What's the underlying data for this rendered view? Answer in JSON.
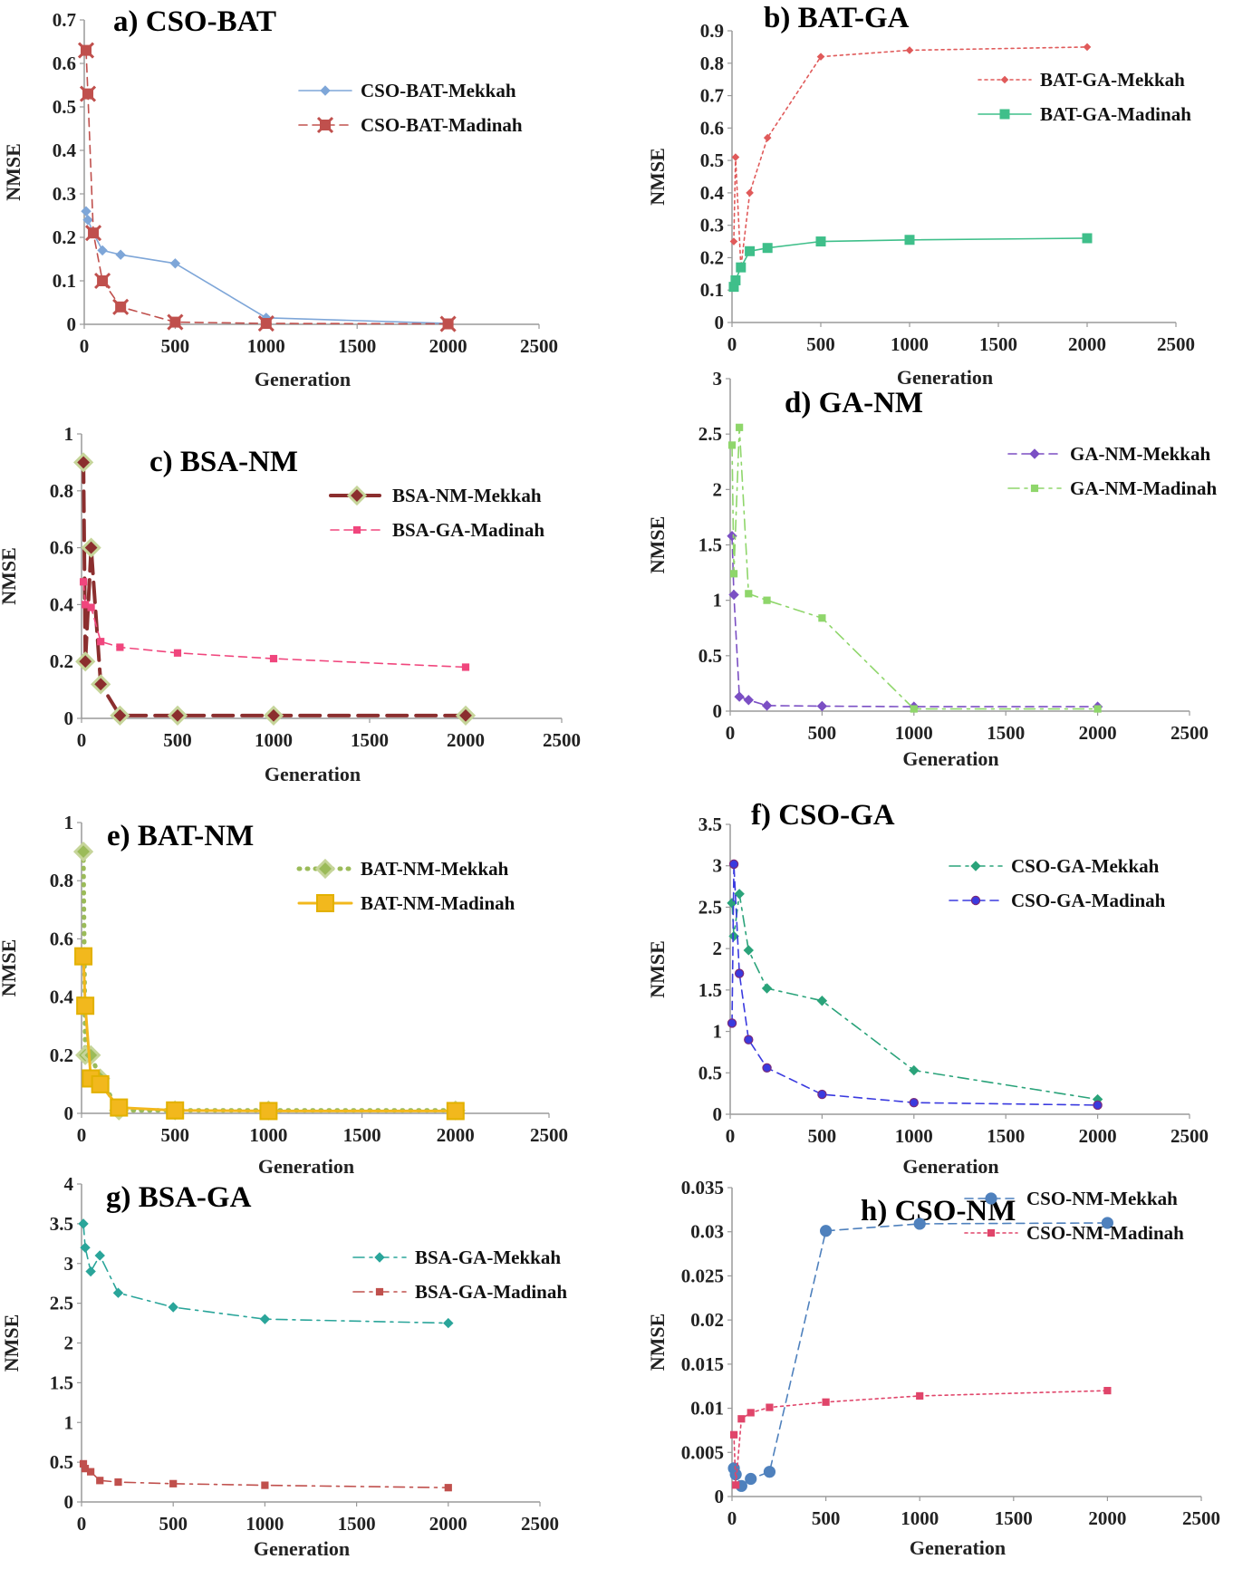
{
  "chart_data": [
    {
      "type": "line",
      "title": "a) CSO-BAT",
      "xlabel": "Generation",
      "ylabel": "NMSE",
      "xlim": [
        0,
        2500
      ],
      "ylim": [
        0,
        0.7
      ],
      "xticks": [
        0,
        500,
        1000,
        1500,
        2000,
        2500
      ],
      "xtick_labels": [
        "0",
        "500",
        "1000",
        "1500",
        "2000",
        "2500"
      ],
      "yticks": [
        0,
        0.1,
        0.2,
        0.3,
        0.4,
        0.5,
        0.6,
        0.7
      ],
      "ytick_labels": [
        "0",
        "0.1",
        "0.2",
        "0.3",
        "0.4",
        "0.5",
        "0.6",
        "0.7"
      ],
      "legend": "top-right",
      "series": [
        {
          "name": "CSO-BAT-Mekkah",
          "color": "#7ea6d8",
          "marker": "diamond",
          "dash": "solid",
          "x": [
            10,
            20,
            50,
            100,
            200,
            500,
            1000,
            2000
          ],
          "y": [
            0.26,
            0.24,
            0.21,
            0.17,
            0.16,
            0.14,
            0.015,
            0.002
          ]
        },
        {
          "name": "CSO-BAT-Madinah",
          "color": "#c0504d",
          "marker": "x-square",
          "dash": "dashed",
          "x": [
            10,
            20,
            50,
            100,
            200,
            500,
            1000,
            2000
          ],
          "y": [
            0.63,
            0.53,
            0.21,
            0.1,
            0.04,
            0.005,
            0.002,
            0.001
          ]
        }
      ]
    },
    {
      "type": "line",
      "title": "b) BAT-GA",
      "xlabel": "Generation",
      "ylabel": "NMSE",
      "xlim": [
        0,
        2500
      ],
      "ylim": [
        0,
        0.9
      ],
      "xticks": [
        0,
        500,
        1000,
        1500,
        2000,
        2500
      ],
      "xtick_labels": [
        "0",
        "500",
        "1000",
        "1500",
        "2000",
        "2500"
      ],
      "yticks": [
        0,
        0.1,
        0.2,
        0.3,
        0.4,
        0.5,
        0.6,
        0.7,
        0.8,
        0.9
      ],
      "ytick_labels": [
        "0",
        "0.1",
        "0.2",
        "0.3",
        "0.4",
        "0.5",
        "0.6",
        "0.7",
        "0.8",
        "0.9"
      ],
      "legend": "top-right",
      "series": [
        {
          "name": "BAT-GA-Mekkah",
          "color": "#e05a5a",
          "marker": "diamond-small",
          "dash": "dotted",
          "x": [
            10,
            20,
            50,
            100,
            200,
            500,
            1000,
            2000
          ],
          "y": [
            0.25,
            0.51,
            0.17,
            0.4,
            0.57,
            0.82,
            0.84,
            0.85
          ]
        },
        {
          "name": "BAT-GA-Madinah",
          "color": "#3fbf8a",
          "marker": "square",
          "dash": "solid",
          "x": [
            10,
            20,
            50,
            100,
            200,
            500,
            1000,
            2000
          ],
          "y": [
            0.11,
            0.13,
            0.17,
            0.22,
            0.23,
            0.25,
            0.255,
            0.26
          ]
        }
      ]
    },
    {
      "type": "line",
      "title": "c) BSA-NM",
      "xlabel": "Generation",
      "ylabel": "NMSE",
      "xlim": [
        0,
        2500
      ],
      "ylim": [
        0,
        1
      ],
      "xticks": [
        0,
        500,
        1000,
        1500,
        2000,
        2500
      ],
      "xtick_labels": [
        "0",
        "500",
        "1000",
        "1500",
        "2000",
        "2500"
      ],
      "yticks": [
        0,
        0.2,
        0.4,
        0.6,
        0.8,
        1
      ],
      "ytick_labels": [
        "0",
        "0.2",
        "0.4",
        "0.6",
        "0.8",
        "1"
      ],
      "legend": "top-right",
      "series": [
        {
          "name": "BSA-NM-Mekkah",
          "color": "#8b2e2e",
          "marker": "diamond-large",
          "dash": "longdash",
          "width": 4,
          "x": [
            10,
            20,
            50,
            100,
            200,
            500,
            1000,
            2000
          ],
          "y": [
            0.9,
            0.2,
            0.6,
            0.12,
            0.01,
            0.01,
            0.01,
            0.01
          ]
        },
        {
          "name": "BSA-GA-Madinah",
          "color": "#f0467d",
          "marker": "square-small",
          "dash": "dashed",
          "x": [
            10,
            20,
            50,
            100,
            200,
            500,
            1000,
            2000
          ],
          "y": [
            0.48,
            0.4,
            0.39,
            0.27,
            0.25,
            0.23,
            0.21,
            0.18
          ]
        }
      ]
    },
    {
      "type": "line",
      "title": "d) GA-NM",
      "xlabel": "Generation",
      "ylabel": "NMSE",
      "xlim": [
        0,
        2500
      ],
      "ylim": [
        0,
        3
      ],
      "xticks": [
        0,
        500,
        1000,
        1500,
        2000,
        2500
      ],
      "xtick_labels": [
        "0",
        "500",
        "1000",
        "1500",
        "2000",
        "2500"
      ],
      "yticks": [
        0,
        0.5,
        1,
        1.5,
        2,
        2.5,
        3
      ],
      "ytick_labels": [
        "0",
        "0.5",
        "1",
        "1.5",
        "2",
        "2.5",
        "3"
      ],
      "legend": "top-right",
      "series": [
        {
          "name": "GA-NM-Mekkah",
          "color": "#7b4fc4",
          "marker": "diamond",
          "dash": "dashed",
          "x": [
            10,
            20,
            50,
            100,
            200,
            500,
            1000,
            2000
          ],
          "y": [
            1.58,
            1.05,
            0.13,
            0.1,
            0.05,
            0.045,
            0.04,
            0.04
          ]
        },
        {
          "name": "GA-NM-Madinah",
          "color": "#8fd66b",
          "marker": "square-small",
          "dash": "dashdot",
          "x": [
            10,
            20,
            50,
            100,
            200,
            500,
            1000,
            2000
          ],
          "y": [
            2.4,
            1.24,
            2.56,
            1.06,
            1.0,
            0.84,
            0.02,
            0.02
          ]
        }
      ]
    },
    {
      "type": "line",
      "title": "e) BAT-NM",
      "xlabel": "Generation",
      "ylabel": "NMSE",
      "xlim": [
        0,
        2500
      ],
      "ylim": [
        0,
        1
      ],
      "xticks": [
        0,
        500,
        1000,
        1500,
        2000,
        2500
      ],
      "xtick_labels": [
        "0",
        "500",
        "1000",
        "1500",
        "2000",
        "2500"
      ],
      "yticks": [
        0,
        0.2,
        0.4,
        0.6,
        0.8,
        1
      ],
      "ytick_labels": [
        "0",
        "0.2",
        "0.4",
        "0.6",
        "0.8",
        "1"
      ],
      "legend": "top-right",
      "series": [
        {
          "name": "BAT-NM-Mekkah",
          "color": "#9bbb59",
          "marker": "diamond-large",
          "dash": "rounddot",
          "width": 5,
          "x": [
            10,
            20,
            50,
            100,
            200,
            500,
            1000,
            2000
          ],
          "y": [
            0.9,
            0.2,
            0.2,
            0.12,
            0.01,
            0.01,
            0.01,
            0.01
          ]
        },
        {
          "name": "BAT-NM-Madinah",
          "color": "#f2b81d",
          "marker": "square-large",
          "dash": "solid",
          "width": 3,
          "x": [
            10,
            20,
            50,
            100,
            200,
            500,
            1000,
            2000
          ],
          "y": [
            0.54,
            0.37,
            0.12,
            0.1,
            0.02,
            0.01,
            0.008,
            0.008
          ]
        }
      ]
    },
    {
      "type": "line",
      "title": "f) CSO-GA",
      "xlabel": "Generation",
      "ylabel": "NMSE",
      "xlim": [
        0,
        2500
      ],
      "ylim": [
        0,
        3.5
      ],
      "xticks": [
        0,
        500,
        1000,
        1500,
        2000,
        2500
      ],
      "xtick_labels": [
        "0",
        "500",
        "1000",
        "1500",
        "2000",
        "2500"
      ],
      "yticks": [
        0,
        0.5,
        1,
        1.5,
        2,
        2.5,
        3,
        3.5
      ],
      "ytick_labels": [
        "0",
        "0.5",
        "1",
        "1.5",
        "2",
        "2.5",
        "3",
        "3.5"
      ],
      "legend": "top-right",
      "series": [
        {
          "name": "CSO-GA-Mekkah",
          "color": "#2aa37a",
          "marker": "diamond",
          "dash": "dashdot",
          "x": [
            10,
            20,
            50,
            100,
            200,
            500,
            1000,
            2000
          ],
          "y": [
            2.55,
            2.15,
            2.66,
            1.98,
            1.52,
            1.37,
            0.53,
            0.18
          ]
        },
        {
          "name": "CSO-GA-Madinah",
          "color": "#3a3adf",
          "marker": "circle-small",
          "dash": "dashed",
          "x": [
            10,
            20,
            50,
            100,
            200,
            500,
            1000,
            2000
          ],
          "y": [
            1.1,
            3.02,
            1.7,
            0.9,
            0.56,
            0.24,
            0.14,
            0.11
          ]
        }
      ]
    },
    {
      "type": "line",
      "title": "g) BSA-GA",
      "xlabel": "Generation",
      "ylabel": "NMSE",
      "xlim": [
        0,
        2500
      ],
      "ylim": [
        0,
        4
      ],
      "xticks": [
        0,
        500,
        1000,
        1500,
        2000,
        2500
      ],
      "xtick_labels": [
        "0",
        "500",
        "1000",
        "1500",
        "2000",
        "2500"
      ],
      "yticks": [
        0,
        0.5,
        1,
        1.5,
        2,
        2.5,
        3,
        3.5,
        4
      ],
      "ytick_labels": [
        "0",
        "0.5",
        "1",
        "1.5",
        "2",
        "2.5",
        "3",
        "3.5",
        "4"
      ],
      "legend": "top-right",
      "series": [
        {
          "name": "BSA-GA-Mekkah",
          "color": "#2aa59a",
          "marker": "diamond",
          "dash": "dashdot",
          "x": [
            10,
            20,
            50,
            100,
            200,
            500,
            1000,
            2000
          ],
          "y": [
            3.5,
            3.2,
            2.9,
            3.1,
            2.63,
            2.45,
            2.3,
            2.25
          ]
        },
        {
          "name": "BSA-GA-Madinah",
          "color": "#c0504d",
          "marker": "square-small",
          "dash": "dashdot",
          "x": [
            10,
            20,
            50,
            100,
            200,
            500,
            1000,
            2000
          ],
          "y": [
            0.48,
            0.42,
            0.38,
            0.27,
            0.25,
            0.23,
            0.21,
            0.18
          ]
        }
      ]
    },
    {
      "type": "line",
      "title": "h) CSO-NM",
      "xlabel": "Generation",
      "ylabel": "NMSE",
      "xlim": [
        0,
        2500
      ],
      "ylim": [
        0,
        0.035
      ],
      "xticks": [
        0,
        500,
        1000,
        1500,
        2000,
        2500
      ],
      "xtick_labels": [
        "0",
        "500",
        "1000",
        "1500",
        "2000",
        "2500"
      ],
      "yticks": [
        0,
        0.005,
        0.01,
        0.015,
        0.02,
        0.025,
        0.03,
        0.035
      ],
      "ytick_labels": [
        "0",
        "0.005",
        "0.01",
        "0.015",
        "0.02",
        "0.025",
        "0.03",
        "0.035"
      ],
      "legend": "top-right",
      "series": [
        {
          "name": "CSO-NM-Mekkah",
          "color": "#4f81bd",
          "marker": "circle",
          "dash": "dashed",
          "x": [
            10,
            20,
            50,
            100,
            200,
            500,
            1000,
            2000
          ],
          "y": [
            0.0032,
            0.0025,
            0.0012,
            0.002,
            0.0028,
            0.0301,
            0.0309,
            0.031
          ]
        },
        {
          "name": "CSO-NM-Madinah",
          "color": "#e0456a",
          "marker": "square-small",
          "dash": "dotted",
          "x": [
            10,
            20,
            50,
            100,
            200,
            500,
            1000,
            2000
          ],
          "y": [
            0.007,
            0.0013,
            0.0088,
            0.0095,
            0.0101,
            0.0107,
            0.0114,
            0.012
          ]
        }
      ]
    }
  ]
}
